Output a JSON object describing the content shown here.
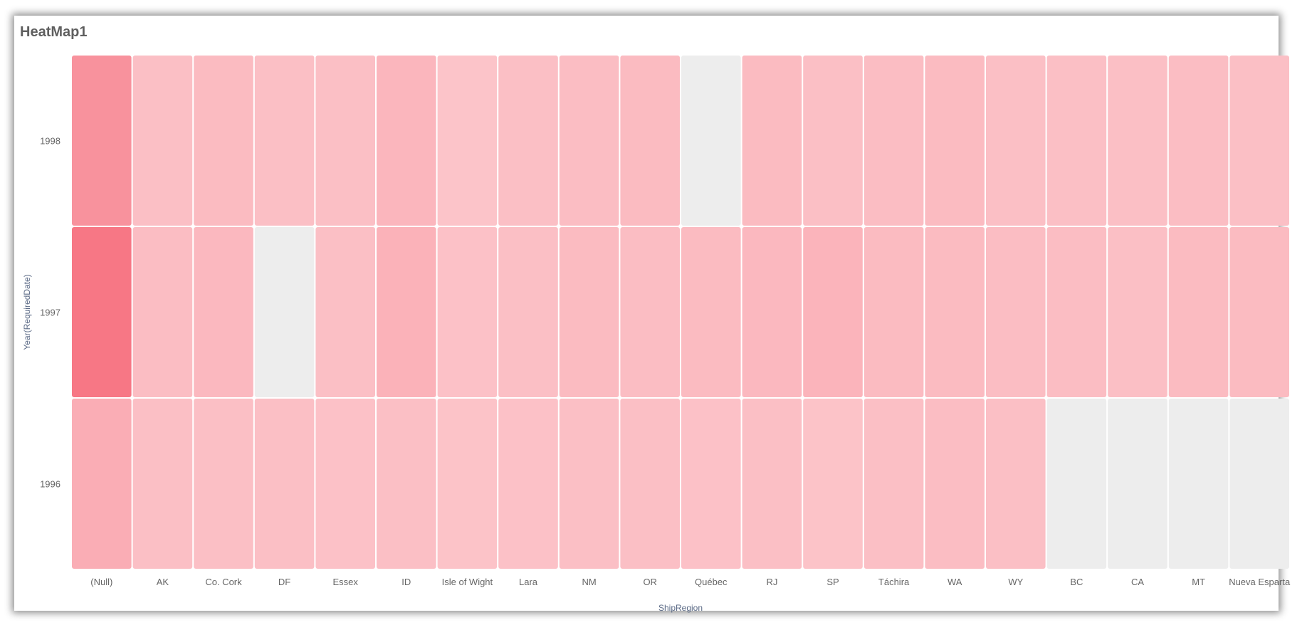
{
  "title": "HeatMap1",
  "chart_data": {
    "type": "heatmap",
    "title": "HeatMap1",
    "xlabel": "ShipRegion",
    "ylabel": "Year(RequiredDate)",
    "x_categories": [
      "(Null)",
      "AK",
      "Co. Cork",
      "DF",
      "Essex",
      "ID",
      "Isle of Wight",
      "Lara",
      "NM",
      "OR",
      "Québec",
      "RJ",
      "SP",
      "Táchira",
      "WA",
      "WY",
      "BC",
      "CA",
      "MT",
      "Nueva Esparta"
    ],
    "y_categories": [
      "1998",
      "1997",
      "1996"
    ],
    "value_note": "relative intensity 0-1 estimated from color; null = no data",
    "values": [
      [
        0.6,
        0.1,
        0.15,
        0.1,
        0.1,
        0.2,
        0.05,
        0.1,
        0.12,
        0.15,
        null,
        0.15,
        0.1,
        0.12,
        0.15,
        0.1,
        0.1,
        0.1,
        0.12,
        0.1
      ],
      [
        0.9,
        0.12,
        0.18,
        null,
        0.1,
        0.25,
        0.08,
        0.1,
        0.15,
        0.12,
        0.15,
        0.18,
        0.22,
        0.15,
        0.15,
        0.12,
        0.12,
        0.1,
        0.15,
        0.15
      ],
      [
        0.3,
        0.1,
        0.1,
        0.1,
        0.08,
        0.1,
        0.06,
        0.08,
        0.1,
        0.1,
        0.08,
        0.1,
        0.06,
        0.1,
        0.12,
        0.1,
        null,
        null,
        null,
        null
      ]
    ],
    "color_scale": {
      "low": "#fcc8cd",
      "high": "#f66e7d",
      "empty": "#ededed"
    },
    "grid": false,
    "legend": "none"
  }
}
